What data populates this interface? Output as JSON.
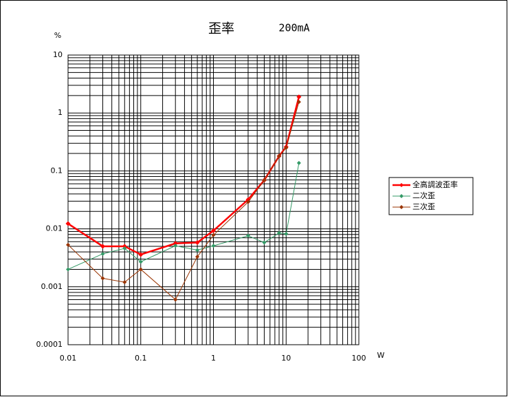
{
  "chart_data": {
    "type": "line",
    "title": "歪率",
    "subtitle": "200mA",
    "ylabel": "%",
    "xlabel": "W",
    "xscale": "log",
    "yscale": "log",
    "grid": true,
    "minor_grid": true,
    "legend": "right",
    "xlim": [
      0.01,
      100
    ],
    "xticks": [
      0.01,
      0.1,
      1,
      10,
      100
    ],
    "ylim": [
      0.0001,
      10
    ],
    "yticks": [
      0.0001,
      0.001,
      0.01,
      0.1,
      1,
      10
    ],
    "x": [
      0.01,
      0.03,
      0.06,
      0.1,
      0.3,
      0.6,
      1,
      3,
      5,
      8,
      10,
      15
    ],
    "series": [
      {
        "name": "全高調波歪率",
        "color": "#ff0000",
        "values": [
          0.0123,
          0.005,
          0.005,
          0.0036,
          0.0056,
          0.0058,
          0.0093,
          0.032,
          0.069,
          0.18,
          0.26,
          1.9
        ]
      },
      {
        "name": "二次歪",
        "color": "#339966",
        "values": [
          0.002,
          0.0037,
          0.0046,
          0.0027,
          0.0051,
          0.0043,
          0.0051,
          0.0076,
          0.0058,
          0.0085,
          0.0082,
          0.137
        ]
      },
      {
        "name": "三次歪",
        "color": "#993300",
        "values": [
          0.0053,
          0.0014,
          0.0012,
          0.002,
          0.0006,
          0.0033,
          0.0078,
          0.029,
          0.069,
          0.18,
          0.25,
          1.55
        ]
      }
    ]
  }
}
